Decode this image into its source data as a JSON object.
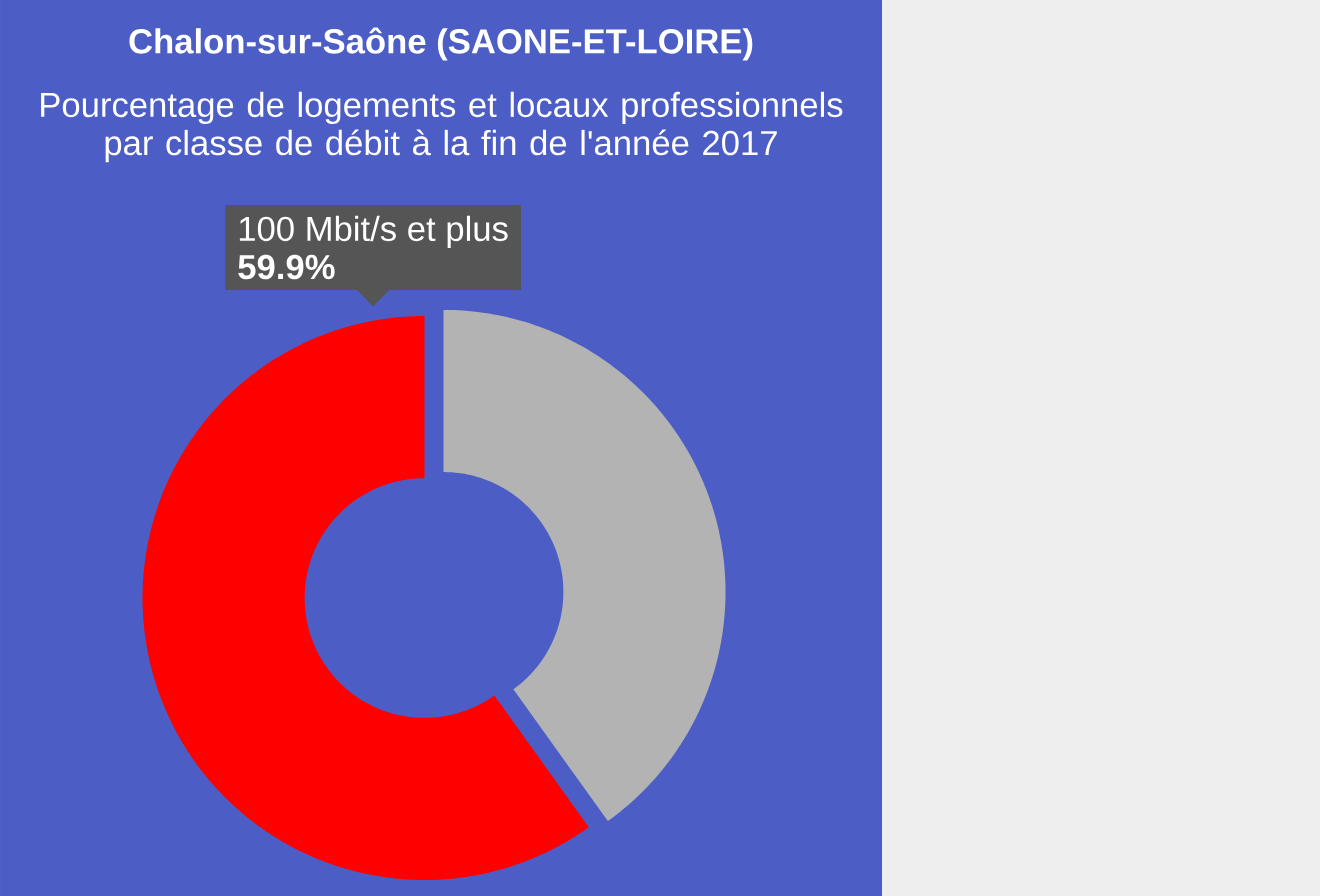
{
  "chart_data": {
    "type": "donut",
    "title": "Chalon-sur-Saône (SAONE-ET-LOIRE)",
    "subtitle": "Pourcentage de logements et locaux professionnels par classe de débit à la fin de l'année 2017",
    "categories": [
      null,
      "100 Mbit/s et plus"
    ],
    "values": [
      40.1,
      59.9
    ],
    "colors": [
      "#b3b3b3",
      "#ff0000"
    ],
    "value_labels": [
      null,
      "59.9%"
    ]
  }
}
